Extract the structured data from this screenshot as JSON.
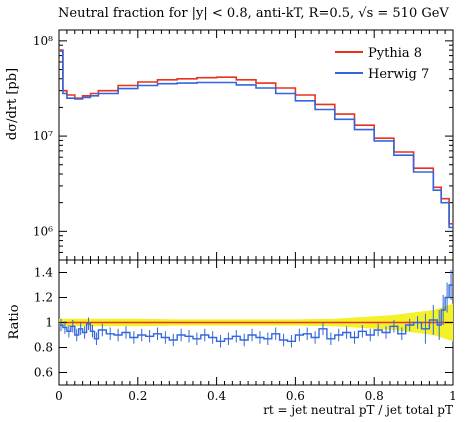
{
  "chart_data": [
    {
      "type": "line",
      "title": "Neutral fraction for |y| < 0.8, anti-kT, R=0.5, √s = 510 GeV",
      "ylabel": "dσ/drt [pb]",
      "xlim": [
        0,
        1
      ],
      "ylim": [
        500000,
        130000000
      ],
      "yscale": "log",
      "y_tick_labels": [
        "10⁶",
        "10⁷",
        "10⁸"
      ],
      "legend_position": "top-right",
      "x": [
        0.0,
        0.01,
        0.02,
        0.04,
        0.06,
        0.08,
        0.1,
        0.15,
        0.2,
        0.25,
        0.3,
        0.35,
        0.4,
        0.45,
        0.5,
        0.55,
        0.6,
        0.65,
        0.7,
        0.75,
        0.8,
        0.85,
        0.9,
        0.95,
        0.97,
        0.99,
        1.0
      ],
      "series": [
        {
          "name": "Pythia 8",
          "color": "#e8321e",
          "values": [
            80000000,
            30000000,
            27000000,
            25000000,
            26500000,
            28000000,
            30000000,
            34000000,
            37000000,
            39000000,
            40000000,
            41000000,
            41500000,
            39000000,
            36000000,
            32000000,
            27000000,
            21500000,
            17000000,
            13000000,
            9500000,
            6800000,
            4600000,
            2900000,
            2200000,
            1200000,
            700000
          ]
        },
        {
          "name": "Herwig 7",
          "color": "#3366dd",
          "values": [
            78000000,
            28000000,
            25000000,
            24500000,
            25500000,
            26500000,
            28000000,
            31500000,
            34000000,
            35500000,
            36000000,
            36500000,
            36500000,
            34500000,
            32000000,
            28000000,
            23500000,
            19000000,
            15000000,
            11700000,
            8900000,
            6300000,
            4200000,
            2700000,
            2000000,
            1100000,
            650000
          ]
        }
      ]
    },
    {
      "type": "line",
      "ylabel": "Ratio",
      "xlabel": "rt = jet neutral pT / jet total pT",
      "xlim": [
        0,
        1
      ],
      "ylim": [
        0.5,
        1.5
      ],
      "x_tick_labels": [
        "0",
        "0.2",
        "0.4",
        "0.6",
        "0.8",
        "1"
      ],
      "y_tick_labels": [
        "0.6",
        "0.8",
        "1",
        "1.2",
        "1.4"
      ],
      "band": {
        "color": "#f2f22a",
        "x": [
          0.0,
          0.1,
          0.2,
          0.3,
          0.4,
          0.5,
          0.6,
          0.7,
          0.75,
          0.8,
          0.85,
          0.9,
          0.95,
          1.0
        ],
        "lower": [
          0.97,
          0.97,
          0.97,
          0.975,
          0.975,
          0.975,
          0.975,
          0.97,
          0.96,
          0.95,
          0.94,
          0.92,
          0.9,
          0.85
        ],
        "upper": [
          1.03,
          1.03,
          1.03,
          1.025,
          1.025,
          1.025,
          1.025,
          1.03,
          1.04,
          1.05,
          1.06,
          1.08,
          1.1,
          1.15
        ]
      },
      "series": [
        {
          "name": "Herwig 7",
          "color": "#3366dd",
          "x": [
            0.0,
            0.01,
            0.02,
            0.03,
            0.04,
            0.05,
            0.06,
            0.07,
            0.08,
            0.09,
            0.1,
            0.12,
            0.14,
            0.16,
            0.18,
            0.2,
            0.22,
            0.24,
            0.26,
            0.28,
            0.3,
            0.32,
            0.34,
            0.36,
            0.38,
            0.4,
            0.42,
            0.44,
            0.46,
            0.48,
            0.5,
            0.52,
            0.54,
            0.56,
            0.58,
            0.6,
            0.62,
            0.64,
            0.66,
            0.68,
            0.7,
            0.72,
            0.74,
            0.76,
            0.78,
            0.8,
            0.82,
            0.84,
            0.86,
            0.88,
            0.9,
            0.92,
            0.94,
            0.96,
            0.97,
            0.98,
            0.99,
            1.0
          ],
          "values": [
            0.98,
            0.96,
            0.93,
            0.97,
            0.9,
            0.95,
            0.92,
            0.99,
            0.93,
            0.87,
            0.94,
            0.91,
            0.9,
            0.92,
            0.88,
            0.9,
            0.89,
            0.91,
            0.88,
            0.86,
            0.9,
            0.89,
            0.87,
            0.9,
            0.88,
            0.85,
            0.87,
            0.89,
            0.86,
            0.9,
            0.88,
            0.87,
            0.91,
            0.86,
            0.85,
            0.9,
            0.91,
            0.88,
            0.95,
            0.87,
            0.9,
            0.92,
            0.88,
            0.93,
            0.9,
            0.94,
            0.92,
            0.97,
            0.91,
            0.98,
            1.0,
            0.95,
            1.02,
            0.98,
            1.1,
            1.2,
            1.3,
            1.05
          ]
        }
      ]
    }
  ],
  "legend": {
    "pythia_label": "Pythia 8",
    "herwig_label": "Herwig 7"
  }
}
